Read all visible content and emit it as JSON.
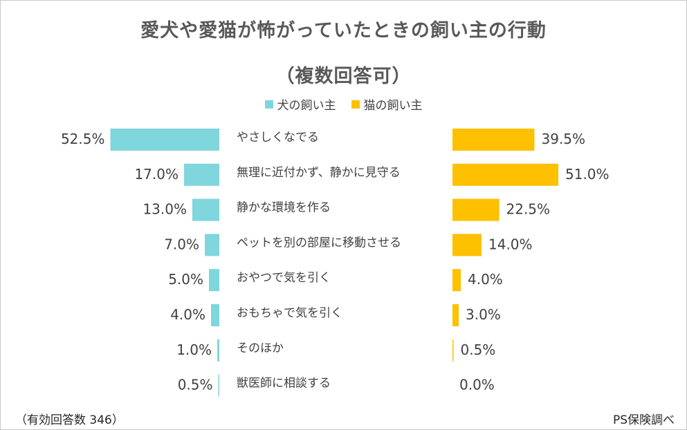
{
  "chart": {
    "title_line1": "愛犬や愛猫が怖がっていたときの飼い主の行動",
    "title_line2": "（複数回答可）",
    "legend": [
      {
        "label": "犬の飼い主",
        "color": "#7fd6dc"
      },
      {
        "label": "猫の飼い主",
        "color": "#ffc000"
      }
    ],
    "sample_note": "（有効回答数 346）",
    "source_note": "PS保険調べ"
  },
  "chart_data": {
    "type": "bar",
    "orientation": "horizontal-butterfly",
    "categories": [
      "やさしくなでる",
      "無理に近付かず、静かに見守る",
      "静かな環境を作る",
      "ペットを別の部屋に移動させる",
      "おやつで気を引く",
      "おもちゃで気を引く",
      "そのほか",
      "獣医師に相談する"
    ],
    "series": [
      {
        "name": "犬の飼い主",
        "color": "#7fd6dc",
        "values": [
          52.5,
          17.0,
          13.0,
          7.0,
          5.0,
          4.0,
          1.0,
          0.5
        ],
        "labels": [
          "52.5%",
          "17.0%",
          "13.0%",
          "7.0%",
          "5.0%",
          "4.0%",
          "1.0%",
          "0.5%"
        ]
      },
      {
        "name": "猫の飼い主",
        "color": "#ffc000",
        "values": [
          39.5,
          51.0,
          22.5,
          14.0,
          4.0,
          3.0,
          0.5,
          0.0
        ],
        "labels": [
          "39.5%",
          "51.0%",
          "22.5%",
          "14.0%",
          "4.0%",
          "3.0%",
          "0.5%",
          "0.0%"
        ]
      }
    ],
    "grid": false,
    "legend_position": "top-center"
  }
}
